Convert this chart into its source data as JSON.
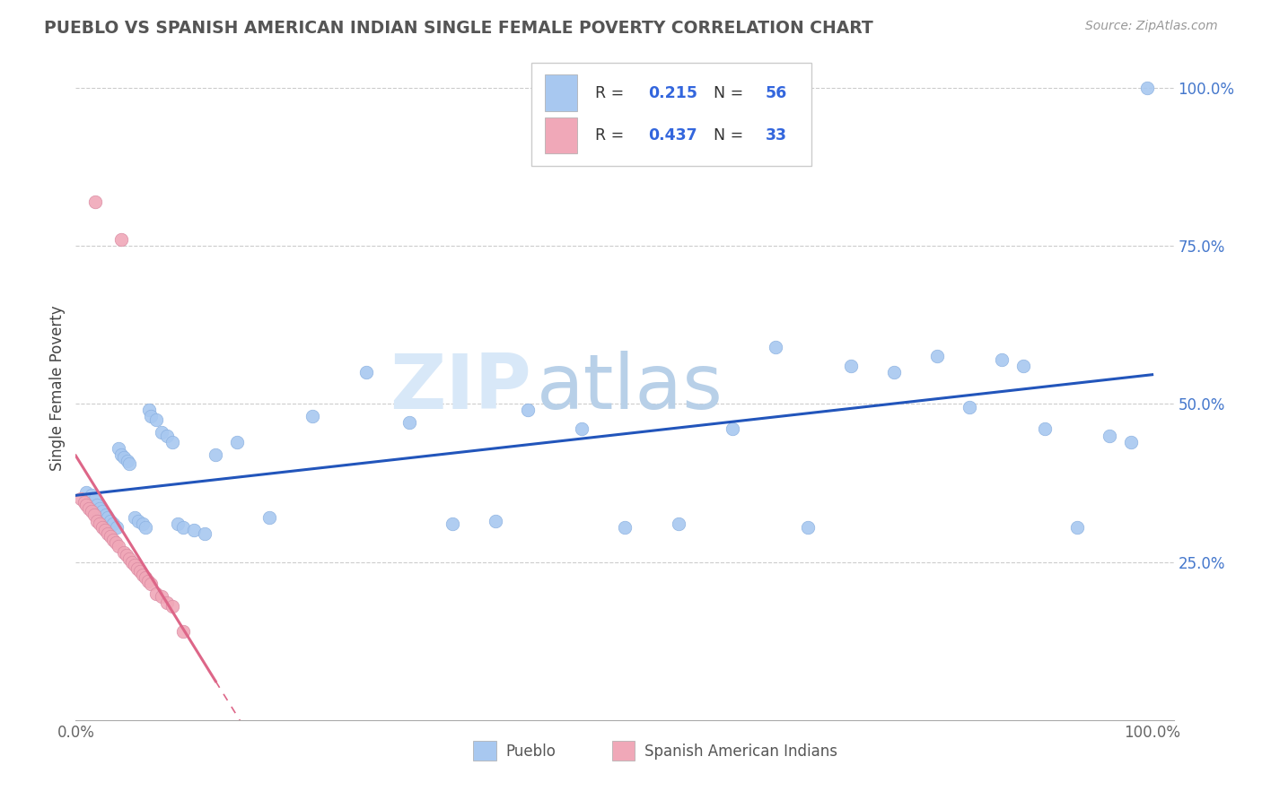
{
  "title": "PUEBLO VS SPANISH AMERICAN INDIAN SINGLE FEMALE POVERTY CORRELATION CHART",
  "source": "Source: ZipAtlas.com",
  "ylabel": "Single Female Poverty",
  "watermark_zip": "ZIP",
  "watermark_atlas": "atlas",
  "blue_color": "#a8c8f0",
  "pink_color": "#f0a8b8",
  "blue_line_color": "#2255bb",
  "pink_line_color": "#dd6688",
  "R_blue": "0.215",
  "N_blue": "56",
  "R_pink": "0.437",
  "N_pink": "33",
  "legend_label1": "Pueblo",
  "legend_label2": "Spanish American Indians",
  "blue_x": [
    0.01,
    0.015,
    0.018,
    0.02,
    0.022,
    0.025,
    0.028,
    0.03,
    0.032,
    0.035,
    0.038,
    0.04,
    0.042,
    0.045,
    0.048,
    0.05,
    0.055,
    0.058,
    0.062,
    0.065,
    0.068,
    0.07,
    0.075,
    0.08,
    0.085,
    0.09,
    0.095,
    0.1,
    0.11,
    0.12,
    0.13,
    0.15,
    0.18,
    0.22,
    0.27,
    0.31,
    0.35,
    0.39,
    0.42,
    0.47,
    0.51,
    0.56,
    0.61,
    0.65,
    0.68,
    0.72,
    0.76,
    0.8,
    0.83,
    0.86,
    0.88,
    0.9,
    0.93,
    0.96,
    0.98,
    0.995
  ],
  "blue_y": [
    0.36,
    0.355,
    0.35,
    0.34,
    0.335,
    0.33,
    0.325,
    0.32,
    0.315,
    0.31,
    0.305,
    0.43,
    0.42,
    0.415,
    0.41,
    0.405,
    0.32,
    0.315,
    0.31,
    0.305,
    0.49,
    0.48,
    0.475,
    0.455,
    0.45,
    0.44,
    0.31,
    0.305,
    0.3,
    0.295,
    0.42,
    0.44,
    0.32,
    0.48,
    0.55,
    0.47,
    0.31,
    0.315,
    0.49,
    0.46,
    0.305,
    0.31,
    0.46,
    0.59,
    0.305,
    0.56,
    0.55,
    0.575,
    0.495,
    0.57,
    0.56,
    0.46,
    0.305,
    0.45,
    0.44,
    1.0
  ],
  "pink_x": [
    0.005,
    0.008,
    0.01,
    0.012,
    0.015,
    0.017,
    0.018,
    0.02,
    0.022,
    0.025,
    0.027,
    0.03,
    0.032,
    0.035,
    0.037,
    0.04,
    0.042,
    0.045,
    0.047,
    0.05,
    0.052,
    0.055,
    0.057,
    0.06,
    0.062,
    0.065,
    0.067,
    0.07,
    0.075,
    0.08,
    0.085,
    0.09,
    0.1
  ],
  "pink_y": [
    0.35,
    0.345,
    0.34,
    0.335,
    0.33,
    0.325,
    0.82,
    0.315,
    0.31,
    0.305,
    0.3,
    0.295,
    0.29,
    0.285,
    0.28,
    0.275,
    0.76,
    0.265,
    0.26,
    0.255,
    0.25,
    0.245,
    0.24,
    0.235,
    0.23,
    0.225,
    0.22,
    0.215,
    0.2,
    0.195,
    0.185,
    0.18,
    0.14
  ]
}
